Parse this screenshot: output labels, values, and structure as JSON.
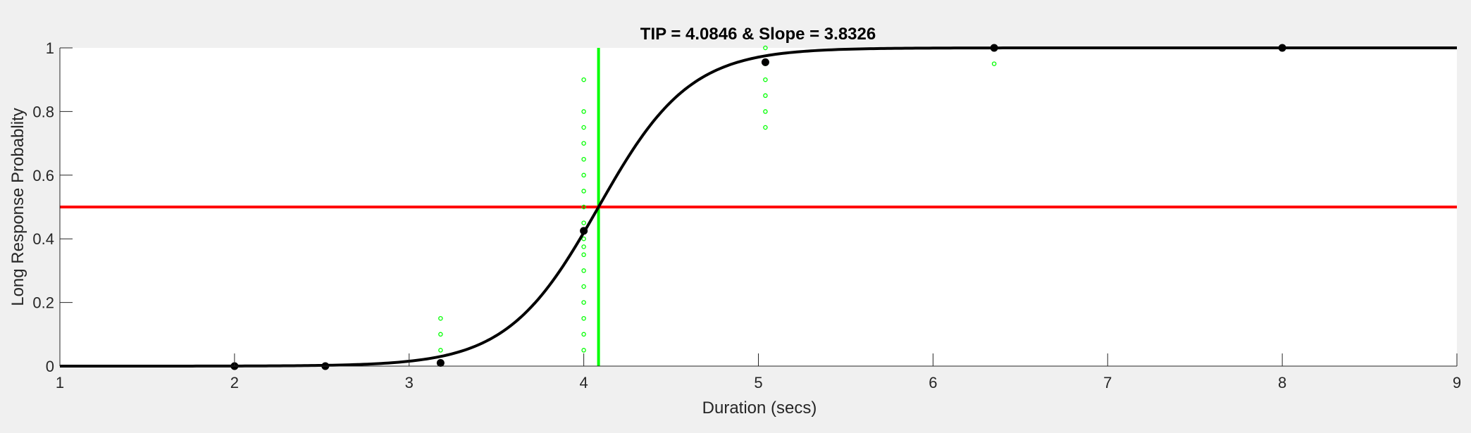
{
  "chart_data": {
    "type": "line",
    "title": "TIP = 4.0846 & Slope = 3.8326",
    "xlabel": "Duration (secs)",
    "ylabel": "Long Response Probablity",
    "xlim": [
      1,
      9
    ],
    "ylim": [
      0,
      1
    ],
    "xticks": [
      1,
      2,
      3,
      4,
      5,
      6,
      7,
      8,
      9
    ],
    "yticks": [
      0,
      0.2,
      0.4,
      0.6,
      0.8,
      1
    ],
    "grid": false,
    "curve": {
      "type": "logistic",
      "tip": 4.0846,
      "slope": 3.8326,
      "color": "#000000"
    },
    "threshold_line": {
      "y": 0.5,
      "color": "#ff0000"
    },
    "tip_line": {
      "x": 4.0846,
      "color": "#00ff00"
    },
    "mean_points": {
      "color": "#000000",
      "x": [
        2.0,
        2.52,
        3.18,
        4.0,
        5.04,
        6.35,
        8.0
      ],
      "y": [
        0.0,
        0.0,
        0.01,
        0.425,
        0.955,
        1.0,
        1.0
      ]
    },
    "trial_points": {
      "color": "#00ff00",
      "x": [
        3.18,
        3.18,
        3.18,
        4.0,
        4.0,
        4.0,
        4.0,
        4.0,
        4.0,
        4.0,
        4.0,
        4.0,
        4.0,
        4.0,
        4.0,
        4.0,
        4.0,
        4.0,
        4.0,
        4.0,
        4.0,
        4.0,
        5.04,
        5.04,
        5.04,
        5.04,
        5.04,
        5.04,
        6.35
      ],
      "y": [
        0.05,
        0.1,
        0.15,
        0.05,
        0.1,
        0.15,
        0.2,
        0.25,
        0.3,
        0.35,
        0.4,
        0.45,
        0.55,
        0.6,
        0.65,
        0.7,
        0.75,
        0.8,
        0.9,
        0.425,
        0.375,
        0.5,
        0.75,
        0.8,
        0.85,
        0.9,
        0.95,
        1.0,
        0.95
      ]
    }
  }
}
